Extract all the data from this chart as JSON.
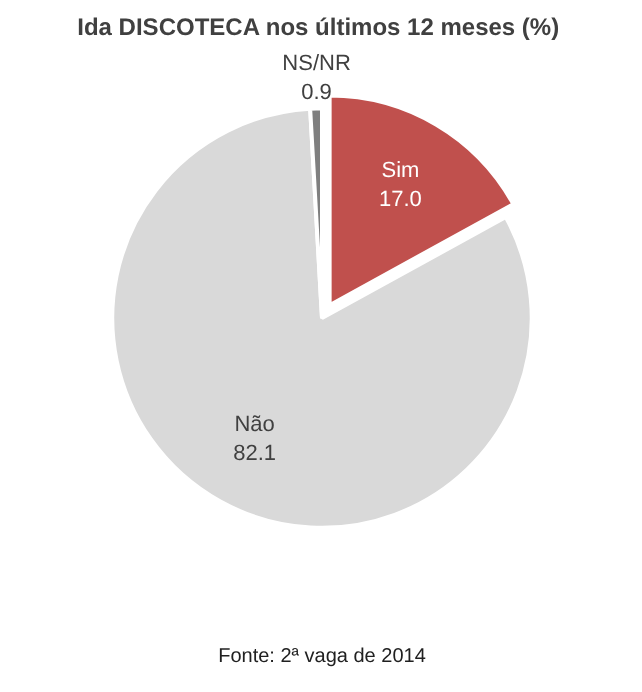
{
  "chart_data": {
    "type": "pie",
    "title": "Ida DISCOTECA  nos últimos 12 meses (%)",
    "categories": [
      "Sim",
      "Não",
      "NS/NR"
    ],
    "values": [
      17.0,
      82.1,
      0.9
    ],
    "colors": [
      "#c0504d",
      "#d9d9d9",
      "#7f7f7f"
    ],
    "value_labels": [
      "17.0",
      "82.1",
      "0.9"
    ],
    "annotations": [
      "Fonte: 2ª vaga de 2014"
    ]
  }
}
